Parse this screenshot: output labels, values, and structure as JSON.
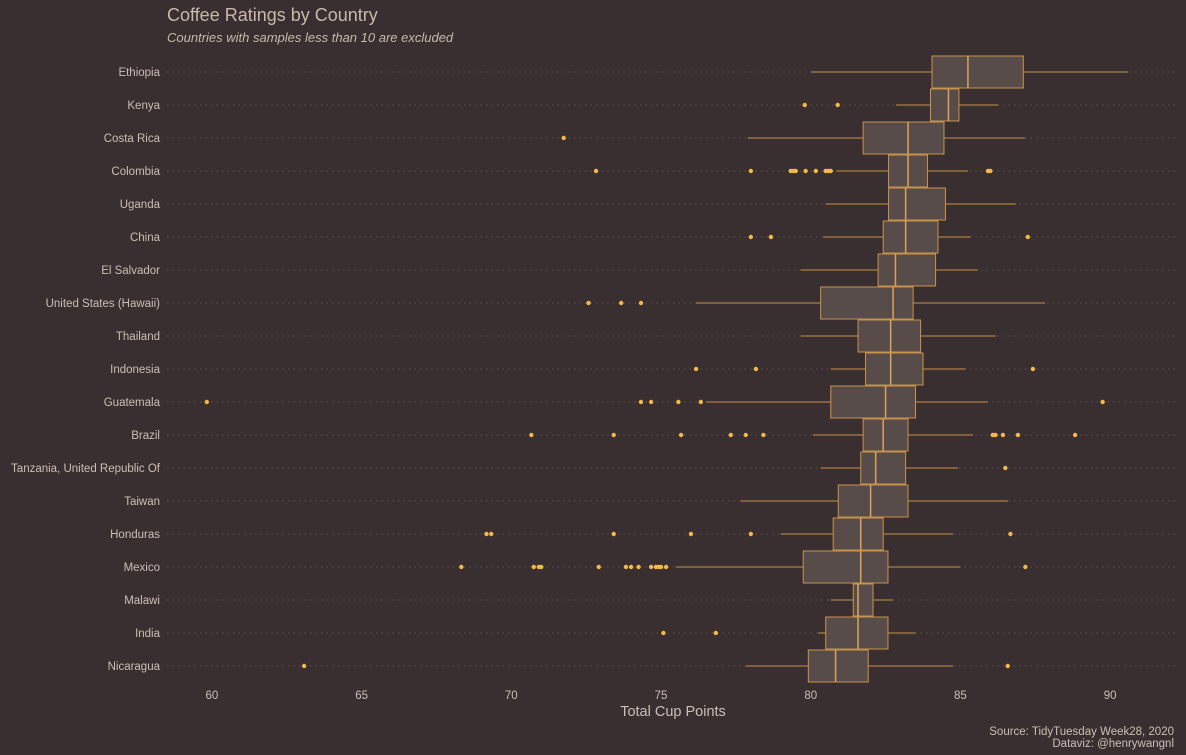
{
  "colors": {
    "background": "#3a2f30",
    "box_fill": "#584c4b",
    "box_stroke": "#c8934a",
    "median": "#d9a35a",
    "whisker": "#c8934a",
    "outlier": "#f5b94a",
    "grid": "#5e5250",
    "text": "#cdbfb3"
  },
  "chart_data": {
    "type": "boxplot",
    "orientation": "horizontal",
    "title": "Coffee Ratings by Country",
    "subtitle": "Countries with samples less than 10 are excluded",
    "xlabel": "Total Cup Points",
    "ylabel": "",
    "xlim": [
      58.5,
      92.2
    ],
    "xticks": [
      60,
      65,
      70,
      75,
      80,
      85,
      90
    ],
    "grid": "dotted horizontal",
    "caption": [
      "Source: TidyTuesday Week28, 2020",
      "Dataviz: @henrywangnl"
    ],
    "countries": [
      {
        "name": "Ethiopia",
        "whisker_low": 80.0,
        "q1": 84.05,
        "median": 85.25,
        "q3": 87.1,
        "whisker_high": 90.6,
        "outliers": []
      },
      {
        "name": "Kenya",
        "whisker_low": 82.85,
        "q1": 84.0,
        "median": 84.6,
        "q3": 84.95,
        "whisker_high": 86.25,
        "outliers": [
          79.8,
          80.9
        ]
      },
      {
        "name": "Costa Rica",
        "whisker_low": 77.9,
        "q1": 81.75,
        "median": 83.25,
        "q3": 84.45,
        "whisker_high": 87.15,
        "outliers": [
          71.75
        ]
      },
      {
        "name": "Colombia",
        "whisker_low": 80.85,
        "q1": 82.6,
        "median": 83.25,
        "q3": 83.9,
        "whisker_high": 85.25,
        "outliers": [
          72.83,
          78.0,
          79.33,
          79.42,
          79.5,
          79.83,
          80.17,
          80.5,
          80.58,
          80.67,
          85.92,
          86.0
        ]
      },
      {
        "name": "Uganda",
        "whisker_low": 80.5,
        "q1": 82.6,
        "median": 83.17,
        "q3": 84.5,
        "whisker_high": 86.85,
        "outliers": []
      },
      {
        "name": "China",
        "whisker_low": 80.42,
        "q1": 82.42,
        "median": 83.17,
        "q3": 84.25,
        "whisker_high": 85.33,
        "outliers": [
          78.0,
          78.67,
          87.25
        ]
      },
      {
        "name": "El Salvador",
        "whisker_low": 79.67,
        "q1": 82.25,
        "median": 82.83,
        "q3": 84.17,
        "whisker_high": 85.58,
        "outliers": []
      },
      {
        "name": "United States (Hawaii)",
        "whisker_low": 76.17,
        "q1": 80.33,
        "median": 82.75,
        "q3": 83.42,
        "whisker_high": 87.83,
        "outliers": [
          72.58,
          73.67,
          74.33
        ]
      },
      {
        "name": "Thailand",
        "whisker_low": 79.67,
        "q1": 81.58,
        "median": 82.67,
        "q3": 83.67,
        "whisker_high": 86.17,
        "outliers": []
      },
      {
        "name": "Indonesia",
        "whisker_low": 80.67,
        "q1": 81.83,
        "median": 82.67,
        "q3": 83.75,
        "whisker_high": 85.17,
        "outliers": [
          76.17,
          78.17,
          87.42
        ]
      },
      {
        "name": "Guatemala",
        "whisker_low": 76.5,
        "q1": 80.67,
        "median": 82.5,
        "q3": 83.5,
        "whisker_high": 85.92,
        "outliers": [
          59.83,
          74.33,
          74.67,
          75.58,
          76.33,
          89.75
        ]
      },
      {
        "name": "Brazil",
        "whisker_low": 80.08,
        "q1": 81.75,
        "median": 82.42,
        "q3": 83.25,
        "whisker_high": 85.42,
        "outliers": [
          70.67,
          73.42,
          75.67,
          77.33,
          77.83,
          78.42,
          86.08,
          86.17,
          86.42,
          86.92,
          88.83
        ]
      },
      {
        "name": "Tanzania, United Republic Of",
        "whisker_low": 80.33,
        "q1": 81.67,
        "median": 82.17,
        "q3": 83.17,
        "whisker_high": 84.92,
        "outliers": [
          86.5
        ]
      },
      {
        "name": "Taiwan",
        "whisker_low": 77.67,
        "q1": 80.92,
        "median": 82.0,
        "q3": 83.25,
        "whisker_high": 86.58,
        "outliers": []
      },
      {
        "name": "Honduras",
        "whisker_low": 79.0,
        "q1": 80.75,
        "median": 81.67,
        "q3": 82.42,
        "whisker_high": 84.75,
        "outliers": [
          69.17,
          69.33,
          73.42,
          76.0,
          78.0,
          86.67
        ]
      },
      {
        "name": "Mexico",
        "whisker_low": 75.5,
        "q1": 79.75,
        "median": 81.67,
        "q3": 82.58,
        "whisker_high": 85.0,
        "outliers": [
          68.33,
          70.75,
          70.92,
          71.0,
          72.92,
          73.83,
          74.0,
          74.25,
          74.67,
          74.83,
          74.92,
          75.0,
          75.17,
          87.17
        ]
      },
      {
        "name": "Malawi",
        "whisker_low": 80.67,
        "q1": 81.42,
        "median": 81.58,
        "q3": 82.08,
        "whisker_high": 82.75,
        "outliers": []
      },
      {
        "name": "India",
        "whisker_low": 80.25,
        "q1": 80.5,
        "median": 81.58,
        "q3": 82.58,
        "whisker_high": 83.5,
        "outliers": [
          75.08,
          76.83
        ]
      },
      {
        "name": "Nicaragua",
        "whisker_low": 77.83,
        "q1": 79.92,
        "median": 80.83,
        "q3": 81.92,
        "whisker_high": 84.75,
        "outliers": [
          63.08,
          86.58
        ]
      }
    ]
  }
}
